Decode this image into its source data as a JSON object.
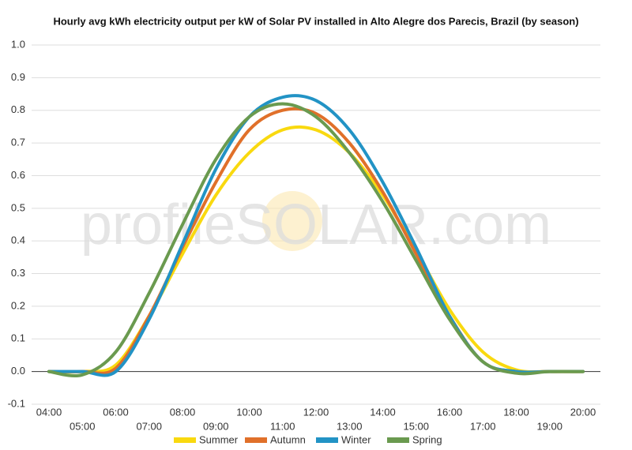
{
  "chart_data": {
    "type": "line",
    "title": "Hourly avg kWh electricity output per kW of Solar PV installed in Alto Alegre dos Parecis, Brazil (by season)",
    "watermark": "profileSOLAR.com",
    "categories": [
      "04:00",
      "05:00",
      "06:00",
      "07:00",
      "08:00",
      "09:00",
      "10:00",
      "11:00",
      "12:00",
      "13:00",
      "14:00",
      "15:00",
      "16:00",
      "17:00",
      "18:00",
      "19:00",
      "20:00"
    ],
    "series": [
      {
        "name": "Summer",
        "color": "#f9d90f",
        "values": [
          0,
          0,
          0.02,
          0.17,
          0.36,
          0.54,
          0.67,
          0.74,
          0.74,
          0.67,
          0.54,
          0.37,
          0.19,
          0.06,
          0.005,
          0,
          0
        ]
      },
      {
        "name": "Autumn",
        "color": "#e0702a",
        "values": [
          0,
          0,
          0.01,
          0.17,
          0.38,
          0.58,
          0.74,
          0.8,
          0.79,
          0.7,
          0.55,
          0.36,
          0.17,
          0.03,
          0,
          0,
          0
        ]
      },
      {
        "name": "Winter",
        "color": "#2293c5",
        "values": [
          0,
          0,
          0,
          0.16,
          0.39,
          0.62,
          0.78,
          0.84,
          0.83,
          0.74,
          0.58,
          0.38,
          0.17,
          0.03,
          0,
          0,
          0
        ]
      },
      {
        "name": "Spring",
        "color": "#6a9a4f",
        "values": [
          0,
          -0.01,
          0.06,
          0.24,
          0.45,
          0.65,
          0.78,
          0.82,
          0.78,
          0.67,
          0.52,
          0.34,
          0.16,
          0.03,
          -0.005,
          0,
          0
        ]
      }
    ],
    "ylim": [
      -0.1,
      1.0
    ],
    "yticks": [
      {
        "value": -0.1,
        "label": "-0.1"
      },
      {
        "value": 0,
        "label": "0.0"
      },
      {
        "value": 0.1,
        "label": "0.1"
      },
      {
        "value": 0.2,
        "label": "0.2"
      },
      {
        "value": 0.3,
        "label": "0.3"
      },
      {
        "value": 0.4,
        "label": "0.4"
      },
      {
        "value": 0.5,
        "label": "0.5"
      },
      {
        "value": 0.6,
        "label": "0.6"
      },
      {
        "value": 0.7,
        "label": "0.7"
      },
      {
        "value": 0.8,
        "label": "0.8"
      },
      {
        "value": 0.9,
        "label": "0.9"
      },
      {
        "value": 1.0,
        "label": "1.0"
      }
    ],
    "grid": true,
    "legend": "bottom"
  }
}
